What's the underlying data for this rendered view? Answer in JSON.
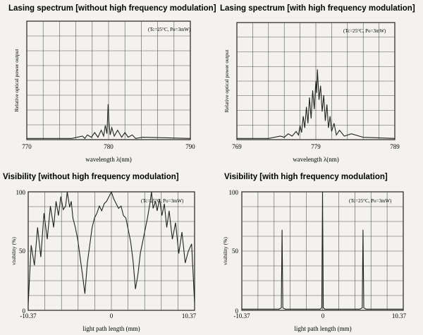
{
  "chart_data": [
    {
      "type": "line",
      "title": "Lasing spectrum [without high frequency modulation]",
      "annotation": "(Tc=25°C, Po=3mW)",
      "xlabel": "wavelength  λ(nm)",
      "ylabel": "Relative optical power output",
      "xlim": [
        770,
        790
      ],
      "ylim": [
        0,
        1
      ],
      "x_ticks": [
        "770",
        "780",
        "790"
      ],
      "grid": true,
      "series": [
        {
          "name": "spectrum",
          "x": [
            770.0,
            775.5,
            776.8,
            777.1,
            777.4,
            777.9,
            778.3,
            778.7,
            779.1,
            779.4,
            779.6,
            779.8,
            779.95,
            780.05,
            780.2,
            780.4,
            780.7,
            781.1,
            781.6,
            782.0,
            782.4,
            782.9,
            783.3,
            784.2,
            790.0
          ],
          "y": [
            0.01,
            0.01,
            0.03,
            0.01,
            0.04,
            0.02,
            0.06,
            0.02,
            0.08,
            0.03,
            0.12,
            0.05,
            0.3,
            0.14,
            0.04,
            0.1,
            0.03,
            0.08,
            0.02,
            0.06,
            0.02,
            0.04,
            0.01,
            0.02,
            0.01
          ]
        }
      ]
    },
    {
      "type": "line",
      "title": "Lasing spectrum [with high frequency modulation]",
      "annotation": "(Tc=25°C, Po=3mW)",
      "xlabel": "wavelength  λ(nm)",
      "ylabel": "Relative optical power output",
      "xlim": [
        769,
        789
      ],
      "ylim": [
        0,
        1
      ],
      "x_ticks": [
        "769",
        "779",
        "789"
      ],
      "grid": true,
      "series": [
        {
          "name": "spectrum",
          "x": [
            769.0,
            773.0,
            774.5,
            775.0,
            775.5,
            776.0,
            776.5,
            776.8,
            777.0,
            777.2,
            777.4,
            777.6,
            777.8,
            778.0,
            778.2,
            778.4,
            778.6,
            778.8,
            779.0,
            779.1,
            779.2,
            779.4,
            779.6,
            779.8,
            780.0,
            780.2,
            780.4,
            780.6,
            780.8,
            781.0,
            781.3,
            781.6,
            782.0,
            782.6,
            783.5,
            785.0,
            789.0
          ],
          "y": [
            0.01,
            0.01,
            0.03,
            0.02,
            0.05,
            0.03,
            0.07,
            0.04,
            0.12,
            0.06,
            0.2,
            0.1,
            0.28,
            0.14,
            0.36,
            0.18,
            0.42,
            0.26,
            0.5,
            0.4,
            0.6,
            0.34,
            0.46,
            0.24,
            0.38,
            0.16,
            0.3,
            0.1,
            0.2,
            0.07,
            0.14,
            0.04,
            0.08,
            0.03,
            0.05,
            0.02,
            0.01
          ]
        }
      ]
    },
    {
      "type": "line",
      "title": "Visibility [without high frequency modulation]",
      "annotation": "(Tc=25°C, Po=3mW)",
      "xlabel": "light path length  (mm)",
      "ylabel": "visibility  (%)",
      "xlim": [
        -10.37,
        10.37
      ],
      "ylim": [
        0,
        100
      ],
      "x_ticks": [
        "-10.37",
        "0",
        "10.37"
      ],
      "y_ticks": [
        "0",
        "50",
        "100"
      ],
      "grid": true,
      "series": [
        {
          "name": "visibility",
          "x": [
            -10.37,
            -10.0,
            -9.6,
            -9.2,
            -8.8,
            -8.4,
            -8.0,
            -7.6,
            -7.2,
            -6.9,
            -6.6,
            -6.3,
            -6.0,
            -5.7,
            -5.5,
            -5.2,
            -5.0,
            -4.8,
            -4.5,
            -4.2,
            -3.9,
            -3.6,
            -3.3,
            -3.0,
            -2.7,
            -2.4,
            -2.1,
            -1.8,
            -1.5,
            -1.2,
            -0.9,
            -0.6,
            -0.3,
            0.0,
            0.3,
            0.6,
            0.9,
            1.2,
            1.5,
            1.8,
            2.1,
            2.4,
            2.7,
            3.0,
            3.3,
            3.6,
            3.9,
            4.2,
            4.5,
            4.8,
            5.0,
            5.2,
            5.5,
            5.7,
            6.0,
            6.3,
            6.6,
            6.9,
            7.2,
            7.6,
            8.0,
            8.4,
            8.8,
            9.2,
            9.6,
            10.0,
            10.37
          ],
          "y": [
            5,
            55,
            38,
            70,
            45,
            82,
            60,
            88,
            70,
            92,
            80,
            96,
            85,
            88,
            100,
            87,
            92,
            78,
            70,
            60,
            45,
            30,
            14,
            40,
            55,
            70,
            78,
            82,
            88,
            84,
            90,
            92,
            96,
            100,
            94,
            90,
            86,
            88,
            80,
            78,
            68,
            58,
            42,
            18,
            30,
            48,
            58,
            68,
            78,
            90,
            100,
            86,
            92,
            84,
            94,
            80,
            90,
            70,
            84,
            60,
            74,
            48,
            66,
            40,
            50,
            56,
            6
          ]
        }
      ]
    },
    {
      "type": "line",
      "title": "Visibility [with high frequency modulation]",
      "annotation": "(Tc=25°C, Po=3mW)",
      "xlabel": "light path length  (mm)",
      "ylabel": "visibility  (%)",
      "xlim": [
        -10.37,
        10.37
      ],
      "ylim": [
        0,
        100
      ],
      "x_ticks": [
        "-10.37",
        "0",
        "10.37"
      ],
      "y_ticks": [
        "0",
        "50",
        "100"
      ],
      "grid": true,
      "series": [
        {
          "name": "visibility",
          "x": [
            -10.37,
            -5.6,
            -5.3,
            -5.2,
            -5.1,
            -4.8,
            -0.3,
            -0.1,
            0.0,
            0.1,
            0.3,
            4.8,
            5.1,
            5.2,
            5.3,
            5.6,
            10.37
          ],
          "y": [
            1,
            1,
            2,
            68,
            2,
            1,
            1,
            2,
            100,
            2,
            1,
            1,
            2,
            68,
            2,
            1,
            1
          ]
        }
      ]
    }
  ]
}
